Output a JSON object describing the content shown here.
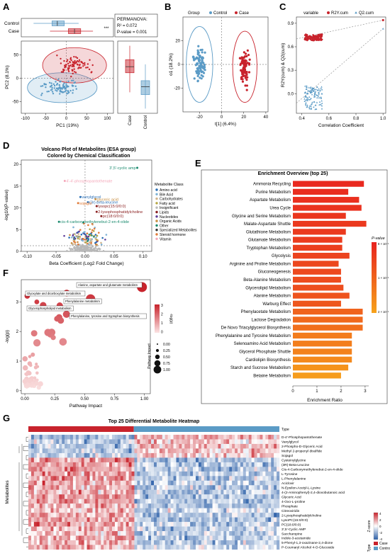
{
  "panel_letters": [
    "A",
    "B",
    "C",
    "D",
    "E",
    "F",
    "G"
  ],
  "colors": {
    "control": "#5b9bc6",
    "case": "#c8232c",
    "sig_grey": "#9a9a9a",
    "enrich_high": "#e8231f",
    "enrich_low": "#f7a21b",
    "heat_low": "#2b5fa8",
    "heat_mid": "#ffffff",
    "heat_high": "#c8232c"
  },
  "chart_data": [
    {
      "panel": "A",
      "type": "scatter",
      "subtitle": "PERMANOVA:",
      "stats": [
        "R² = 0.072",
        "P-value = 0.001"
      ],
      "xlabel": "PC1 (19%)",
      "ylabel": "PC2 (8.1%)",
      "xticks": [
        "-100",
        "-50",
        "0",
        "50",
        "100"
      ],
      "yticks": [
        "-50",
        "0",
        "50"
      ],
      "xlim": [
        -110,
        115
      ],
      "ylim": [
        -75,
        80
      ],
      "groups": [
        "Control",
        "Case"
      ],
      "significance": "***",
      "boxplot_labels": [
        "Case",
        "Control"
      ],
      "series": [
        {
          "name": "Control",
          "centroid": [
            -10,
            -20
          ],
          "ellipse_radii": [
            85,
            32
          ],
          "n": 90
        },
        {
          "name": "Case",
          "centroid": [
            20,
            28
          ],
          "ellipse_radii": [
            78,
            38
          ],
          "n": 85
        }
      ],
      "box_pc1": [
        {
          "name": "Control",
          "q1": -35,
          "median": -22,
          "q3": -5,
          "min": -80,
          "max": 30
        },
        {
          "name": "Case",
          "q1": 5,
          "median": 20,
          "q3": 35,
          "min": -40,
          "max": 65
        }
      ],
      "box_pc2": [
        {
          "name": "Case",
          "q1": 12,
          "median": 25,
          "q3": 40,
          "min": -30,
          "max": 70
        },
        {
          "name": "Control",
          "q1": -35,
          "median": -18,
          "q3": -5,
          "min": -65,
          "max": 30
        }
      ]
    },
    {
      "panel": "B",
      "type": "scatter",
      "legend_title": "Group",
      "legend": [
        "Control",
        "Case"
      ],
      "xlabel": "t[1] (6.4%)",
      "ylabel": "o1 (18.2%)",
      "xticks": [
        "-20",
        "0",
        "20",
        "40"
      ],
      "yticks": [
        "-20",
        "0",
        "20"
      ],
      "xlim": [
        -35,
        42
      ],
      "ylim": [
        -40,
        40
      ],
      "series": [
        {
          "name": "Control",
          "centroid": [
            -20,
            0
          ],
          "ellipse_radii": [
            12,
            32
          ],
          "n": 90
        },
        {
          "name": "Case",
          "centroid": [
            21,
            -2
          ],
          "ellipse_radii": [
            11,
            30
          ],
          "n": 85
        }
      ]
    },
    {
      "panel": "C",
      "type": "scatter",
      "legend_title": "variable",
      "legend": [
        "R2Y.cum",
        "Q2.cum"
      ],
      "xlabel": "Correlation Coefficient",
      "ylabel": "R2Y(cum) & Q2(cum)",
      "xticks": [
        "0.4",
        "0.6",
        "0.8",
        "1.0"
      ],
      "yticks": [
        "0.0",
        "0.3",
        "0.6",
        "0.9"
      ],
      "xlim": [
        0.36,
        1.02
      ],
      "ylim": [
        -0.25,
        0.98
      ],
      "series": [
        {
          "name": "R2Y.cum",
          "cluster_x": [
            0.42,
            0.55
          ],
          "cluster_y": [
            0.68,
            0.76
          ],
          "final": [
            1.0,
            0.94
          ],
          "intercept": 0.7
        },
        {
          "name": "Q2.cum",
          "cluster_x": [
            0.42,
            0.55
          ],
          "cluster_y": [
            -0.2,
            0.1
          ],
          "final": [
            1.0,
            0.83
          ],
          "intercept": -0.12
        }
      ]
    },
    {
      "panel": "D",
      "type": "scatter",
      "title": "Volcano Plot of Metabolites (ESA group)",
      "subtitle": "Colored by Chemical Classification",
      "xlabel": "Beta Coefficient (Log2 Fold Change)",
      "ylabel": "-log10(P-value)",
      "xticks": [
        "-0.10",
        "-0.05",
        "0.00",
        "0.05",
        "0.10"
      ],
      "yticks": [
        "0",
        "5",
        "10",
        "15",
        "20"
      ],
      "xlim": [
        -0.11,
        0.115
      ],
      "ylim": [
        0,
        21
      ],
      "legend_title": "Metabolite Class",
      "classes": [
        "Amino acid",
        "Bile Acid",
        "Carbohydrates",
        "Fatty acid",
        "Insignificant",
        "Lipids",
        "Nucleotides",
        "Organic Acids",
        "Other",
        "Specialized Metabolites",
        "Steroid hormone",
        "Vitamin"
      ],
      "class_colors": [
        "#2a6fb5",
        "#7fb3d5",
        "#d2b48c",
        "#b5a642",
        "#b8b8b8",
        "#8b2020",
        "#5e3c99",
        "#c78d3f",
        "#1a8a6e",
        "#333333",
        "#e07b39",
        "#f4a7b9"
      ],
      "labeled": [
        {
          "label": "3',5'-cyclic amp",
          "x": 0.09,
          "y": 19.2,
          "class": "Other"
        },
        {
          "label": "4'-4'-phosphopantothenate",
          "x": -0.035,
          "y": 16.2,
          "class": "Vitamin"
        },
        {
          "label": "vanylglycol",
          "x": -0.008,
          "y": 12.5,
          "class": "Amino acid"
        },
        {
          "label": "glyceric acid",
          "x": 0.018,
          "y": 12.0,
          "class": "Organic Acids"
        },
        {
          "label": "(3r)-beta-leucine",
          "x": 0.005,
          "y": 11.3,
          "class": "Amino acid"
        },
        {
          "label": "lysopc(15:0/0:0)",
          "x": 0.02,
          "y": 10.4,
          "class": "Lipids"
        },
        {
          "label": "sojagol",
          "x": -0.012,
          "y": 11.1,
          "class": "Steroid hormone"
        },
        {
          "label": "2-lysophosphatidylcholine",
          "x": 0.02,
          "y": 9.1,
          "class": "Lipids"
        },
        {
          "label": "pc(18:0/0:0)",
          "x": 0.028,
          "y": 8.1,
          "class": "Lipids"
        },
        {
          "label": "cis-4-carboxymethylenebut-2-en-4-olide",
          "x": -0.045,
          "y": 6.8,
          "class": "Other"
        }
      ]
    },
    {
      "panel": "E",
      "type": "bar",
      "title": "Enrichment Overview (top 25)",
      "xlabel": "Enrichment Ratio",
      "xticks": [
        "0",
        "1",
        "2",
        "3"
      ],
      "xlim": [
        0,
        3.15
      ],
      "legend_title": "P-value",
      "legend_ticks": [
        "8 × 10⁻¹",
        "1 × 10⁻¹",
        "2 × 10⁻¹"
      ],
      "categories": [
        "Ammonia Recycling",
        "Purine Metabolism",
        "Aspartate Metabolism",
        "Urea Cycle",
        "Glycine and Serine Metabolism",
        "Malate-Aspartate Shuttle",
        "Glutathione Metabolism",
        "Glutamate Metabolism",
        "Tryptophan Metabolism",
        "Glycolysis",
        "Arginine and Proline Metabolism",
        "Gluconeogenesis",
        "Beta-Alanine Metabolism",
        "Glycerolipid Metabolism",
        "Alanine Metabolism",
        "Warburg Effect",
        "Phenylacetate Metabolism",
        "Lactose Degradation",
        "De Novo Triacylglycerol Biosynthesis",
        "Phenylalanine and Tyrosine Metabolism",
        "Selenoamino Acid Metabolism",
        "Glycerol Phosphate Shuttle",
        "Cardiolipin Biosynthesis",
        "Starch and Sucrose Metabolism",
        "Betaine Metabolism"
      ],
      "values": [
        2.95,
        2.3,
        2.75,
        2.85,
        2.2,
        3.05,
        2.2,
        2.05,
        2.05,
        2.35,
        1.9,
        2.0,
        2.0,
        2.1,
        2.35,
        2.0,
        2.9,
        2.9,
        2.9,
        2.45,
        2.45,
        2.45,
        2.45,
        2.3,
        2.0
      ],
      "pvalues_rel": [
        0.95,
        0.92,
        0.9,
        0.88,
        0.85,
        0.83,
        0.82,
        0.8,
        0.78,
        0.75,
        0.72,
        0.7,
        0.68,
        0.66,
        0.62,
        0.6,
        0.5,
        0.45,
        0.4,
        0.3,
        0.28,
        0.25,
        0.2,
        0.12,
        0.05
      ]
    },
    {
      "panel": "F",
      "type": "scatter",
      "xlabel": "Pathway Impact",
      "ylabel": "-log(p)",
      "xticks": [
        "0.00",
        "0.25",
        "0.50",
        "0.75",
        "1.00"
      ],
      "yticks": [
        "0",
        "1",
        "2",
        "3"
      ],
      "xlim": [
        -0.03,
        1.05
      ],
      "ylim": [
        -0.1,
        3.75
      ],
      "legend_color_title": "-log(p)",
      "legend_color_ticks": [
        "3",
        "2",
        "1",
        "0"
      ],
      "legend_size_title": "Pathway Impact",
      "legend_size_ticks": [
        "0.00",
        "0.25",
        "0.50",
        "0.75",
        "1.00"
      ],
      "labeled": [
        {
          "label": "Alanine, aspartate and glutamate metabolism",
          "x": 0.98,
          "y": 3.5,
          "impact": 1.0
        },
        {
          "label": "Glyoxylate and dicarboxylate metabolism",
          "x": 0.02,
          "y": 3.2,
          "impact": 0.3
        },
        {
          "label": "Phenylalanine metabolism",
          "x": 0.35,
          "y": 3.3,
          "impact": 0.5
        },
        {
          "label": "Glycerophospholipid metabolism",
          "x": 0.1,
          "y": 3.0,
          "impact": 0.2
        },
        {
          "label": "Phenylalanine, tyrosine and tryptophan biosynthesis",
          "x": 0.55,
          "y": 3.1,
          "impact": 0.9
        }
      ]
    },
    {
      "panel": "G",
      "type": "heatmap",
      "title": "Top 25 Differential Metabolite Heatmap",
      "ylabel": "Metabolites",
      "annotation_label": "Type",
      "legend_zscore_title": "Z-score",
      "legend_zscore_ticks": [
        "4",
        "2",
        "0",
        "-2",
        "-4"
      ],
      "legend_type_title": "Type",
      "legend_type": [
        "Case",
        "Control"
      ],
      "case_fraction": 0.42,
      "rows": [
        "D-4'-Phosphopantothenate",
        "Vanylglycol",
        "2-Phospho-D-Glyceric Acid",
        "Methyl 2-propenyl disulfide",
        "Sojagol",
        "Cysteinylglycine",
        "(3R)-Beta-Leucine",
        "Cis-4-Carboxymethylenebut-2-en-4-olide",
        "L-Tyrosine",
        "L-Phenylalanine",
        "Aciclovir",
        "N-Epsilon-Acetyl-L-Lysine",
        "4-(2-Aminophenyl)-2,4-dioxobutanoic acid",
        "Glyceric Acid",
        "4-Oxo-L-proline",
        "Phosphate",
        "Citreoviridin",
        "2-Lysophosphatidylcholine",
        "LysoPC(15:0/0:0)",
        "PC(18:0/0:0)",
        "3',5'-Cyclic AMP",
        "Saccharopine",
        "Indole-3-acetamide",
        "5-Phenyl-1,3-oxazinane-2,4-dione",
        "P-Coumaryl Alcohol 4-O-Glucoside"
      ],
      "row_case_mean": [
        -0.4,
        -0.3,
        -0.4,
        -0.3,
        -0.35,
        0.45,
        0.4,
        0.45,
        0.4,
        0.45,
        0.35,
        0.4,
        0.35,
        0.45,
        0.4,
        0.35,
        0.3,
        0.4,
        0.45,
        0.4,
        0.35,
        0.3,
        0.4,
        0.35,
        0.3
      ]
    }
  ]
}
